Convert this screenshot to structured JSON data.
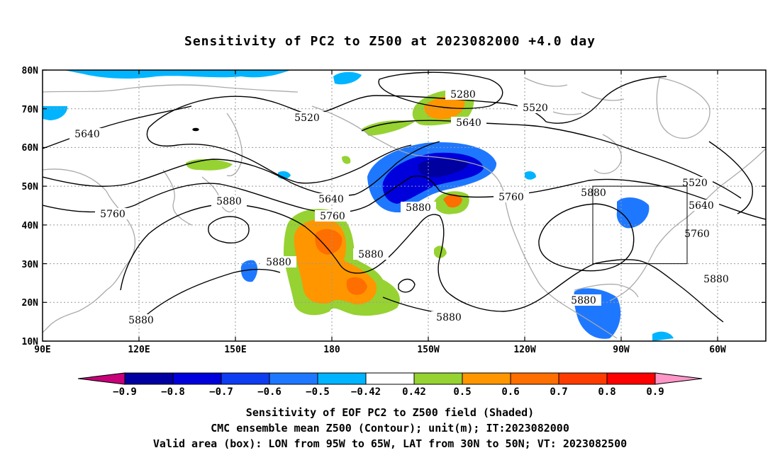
{
  "title": "Sensitivity of PC2 to Z500 at 2023082000 +4.0 day",
  "map": {
    "projection": "cylindrical equidistant",
    "lon_range": [
      "90E",
      "60W",
      "45W"
    ],
    "lat_range": [
      "10N",
      "80N"
    ],
    "lat_ticks": [
      "80N",
      "70N",
      "60N",
      "50N",
      "40N",
      "30N",
      "20N",
      "10N"
    ],
    "lon_ticks": [
      "90E",
      "120E",
      "150E",
      "180",
      "150W",
      "120W",
      "90W",
      "60W"
    ],
    "gridlines": "dotted",
    "coastline_color": "#aaaaaa",
    "contour_labels": [
      {
        "text": "5280"
      },
      {
        "text": "5520"
      },
      {
        "text": "5520"
      },
      {
        "text": "5520"
      },
      {
        "text": "5640"
      },
      {
        "text": "5640"
      },
      {
        "text": "5640"
      },
      {
        "text": "5640"
      },
      {
        "text": "5760"
      },
      {
        "text": "5760"
      },
      {
        "text": "5760"
      },
      {
        "text": "5760"
      },
      {
        "text": "5880"
      },
      {
        "text": "5880"
      },
      {
        "text": "5880"
      },
      {
        "text": "5880"
      },
      {
        "text": "5880"
      },
      {
        "text": "5880"
      },
      {
        "text": "5880"
      },
      {
        "text": "5880"
      },
      {
        "text": "5880"
      }
    ],
    "valid_box": {
      "lon": [
        "95W",
        "65W"
      ],
      "lat": [
        "30N",
        "50N"
      ]
    }
  },
  "colorbar": {
    "labels": [
      "−0.9",
      "−0.8",
      "−0.7",
      "−0.6",
      "−0.5",
      "−0.42",
      "0.42",
      "0.5",
      "0.6",
      "0.7",
      "0.8",
      "0.9"
    ],
    "colors": [
      "#0000a0",
      "#0000dc",
      "#0e3cf0",
      "#1e78ff",
      "#00b4ff",
      "#ffffff",
      "#96d232",
      "#ff9600",
      "#ff6e00",
      "#ff3c00",
      "#ff0000"
    ],
    "low_extend_color": "#c8007a",
    "high_extend_color": "#ff96c8"
  },
  "caption": {
    "line1": "Sensitivity of EOF PC2 to Z500 field (Shaded)",
    "line2": "CMC ensemble mean Z500 (Contour); unit(m); IT:2023082000",
    "line3": "Valid area (box): LON from 95W to 65W, LAT from 30N to 50N; VT: 2023082500"
  }
}
